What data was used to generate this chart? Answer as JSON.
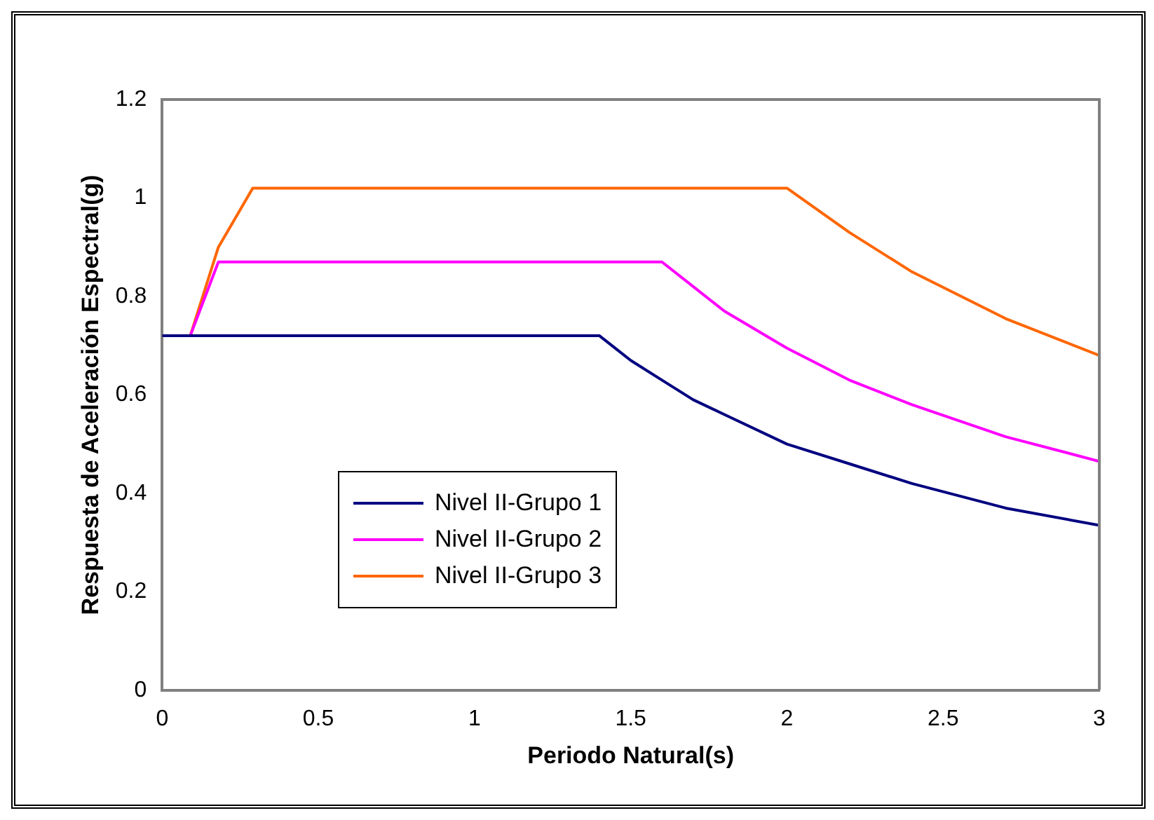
{
  "chart_data": {
    "type": "line",
    "xlabel": "Periodo Natural(s)",
    "ylabel": "Respuesta de Aceleración Espectral(g)",
    "xlim": [
      0,
      3
    ],
    "xticks": [
      0,
      0.5,
      1,
      1.5,
      2,
      2.5,
      3
    ],
    "ylim": [
      0,
      1.2
    ],
    "yticks": [
      0,
      0.2,
      0.4,
      0.6,
      0.8,
      1,
      1.2
    ],
    "grid": false,
    "legend": "bottom left",
    "marker": "none",
    "line_style": "solid",
    "series": [
      {
        "name": "Nivel II-Grupo 1",
        "color": "#000080",
        "x": [
          0,
          1.4,
          1.5,
          1.6,
          1.7,
          1.8,
          2,
          2.2,
          2.4,
          2.7,
          3
        ],
        "values": [
          0.72,
          0.72,
          0.67,
          0.63,
          0.59,
          0.56,
          0.5,
          0.46,
          0.42,
          0.37,
          0.335
        ]
      },
      {
        "name": "Nivel II-Grupo 2",
        "color": "#ff00ff",
        "x": [
          0.09,
          0.18,
          1.6,
          1.7,
          1.8,
          2,
          2.2,
          2.4,
          2.7,
          3
        ],
        "values": [
          0.72,
          0.87,
          0.87,
          0.82,
          0.77,
          0.695,
          0.63,
          0.58,
          0.515,
          0.465
        ]
      },
      {
        "name": "Nivel II-Grupo 3",
        "color": "#ff6600",
        "x": [
          0.09,
          0.18,
          0.29,
          2,
          2.2,
          2.4,
          2.7,
          3
        ],
        "values": [
          0.72,
          0.9,
          1.02,
          1.02,
          0.93,
          0.85,
          0.755,
          0.68
        ]
      }
    ]
  }
}
